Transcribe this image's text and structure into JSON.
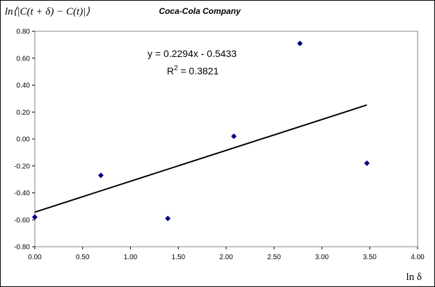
{
  "chart_data": {
    "type": "scatter",
    "title": "Coca-Cola Company",
    "xlabel": "ln δ",
    "ylabel": "ln⟨|C(t + δ) − C(t)|⟩",
    "xlim": [
      0,
      4
    ],
    "ylim": [
      -0.8,
      0.8
    ],
    "x_ticks": [
      "0.00",
      "0.50",
      "1.00",
      "1.50",
      "2.00",
      "2.50",
      "3.00",
      "3.50",
      "4.00"
    ],
    "y_ticks": [
      "0.80",
      "0.60",
      "0.40",
      "0.20",
      "0.00",
      "-0.20",
      "-0.40",
      "-0.60",
      "-0.80"
    ],
    "grid": false,
    "legend": "none",
    "marker_color": "#000080",
    "points": [
      {
        "x": 0.0,
        "y": -0.58
      },
      {
        "x": 0.69,
        "y": -0.27
      },
      {
        "x": 1.39,
        "y": -0.59
      },
      {
        "x": 2.08,
        "y": 0.02
      },
      {
        "x": 2.77,
        "y": 0.71
      },
      {
        "x": 3.47,
        "y": -0.18
      }
    ],
    "trendline": {
      "type": "linear",
      "slope": 0.2294,
      "intercept": -0.5433,
      "x_range": [
        0,
        3.47
      ],
      "equation_label": "y = 0.2294x - 0.5433",
      "r2_label": "R",
      "r2_sup": "2",
      "r2_value": " = 0.3821"
    }
  }
}
